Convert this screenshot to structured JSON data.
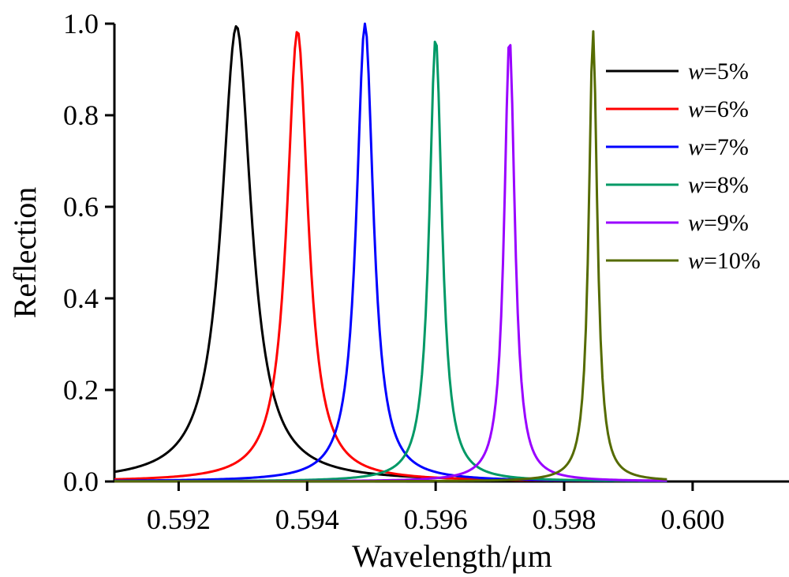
{
  "chart_data": {
    "type": "line",
    "title": "",
    "xlabel": "Wavelength/μm",
    "ylabel": "Reflection",
    "xlim": [
      0.591,
      0.6015
    ],
    "ylim": [
      0,
      1.0
    ],
    "xticks": [
      0.592,
      0.594,
      0.596,
      0.598,
      0.6
    ],
    "xtick_labels": [
      "0.592",
      "0.594",
      "0.596",
      "0.598",
      "0.600"
    ],
    "yticks": [
      0,
      0.2,
      0.4,
      0.6,
      0.8,
      1.0
    ],
    "ytick_labels": [
      "0.0",
      "0.2",
      "0.4",
      "0.6",
      "0.8",
      "1.0"
    ],
    "grid": false,
    "legend_position": "top-right",
    "series": [
      {
        "name_var": "w",
        "name_rest": "=5%",
        "color": "#000000",
        "x_range": [
          0.591,
          0.5996
        ],
        "center": 0.5929,
        "peak": 0.995,
        "halfwidth": 0.00028
      },
      {
        "name_var": "w",
        "name_rest": "=6%",
        "color": "#ff0000",
        "x_range": [
          0.591,
          0.5996
        ],
        "center": 0.59385,
        "peak": 0.985,
        "halfwidth": 0.0002
      },
      {
        "name_var": "w",
        "name_rest": "=7%",
        "color": "#0000ff",
        "x_range": [
          0.591,
          0.5996
        ],
        "center": 0.5949,
        "peak": 1.0,
        "halfwidth": 0.00016
      },
      {
        "name_var": "w",
        "name_rest": "=8%",
        "color": "#009966",
        "x_range": [
          0.591,
          0.5996
        ],
        "center": 0.596,
        "peak": 0.97,
        "halfwidth": 0.00012
      },
      {
        "name_var": "w",
        "name_rest": "=9%",
        "color": "#9900ff",
        "x_range": [
          0.591,
          0.5996
        ],
        "center": 0.59715,
        "peak": 0.97,
        "halfwidth": 0.0001
      },
      {
        "name_var": "w",
        "name_rest": "=10%",
        "color": "#556b00",
        "x_range": [
          0.591,
          0.5996
        ],
        "center": 0.59845,
        "peak": 0.985,
        "halfwidth": 8e-05
      }
    ]
  }
}
